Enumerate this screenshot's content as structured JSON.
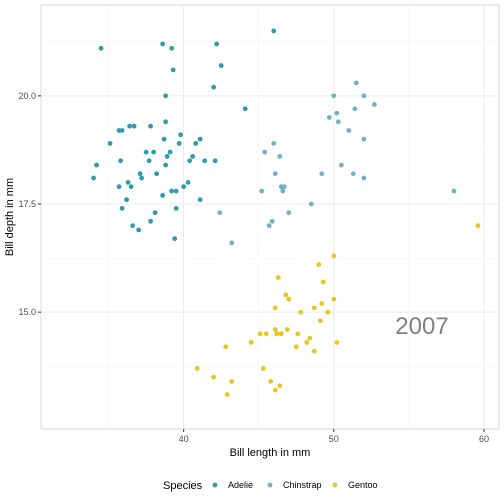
{
  "chart_data": {
    "type": "scatter",
    "title": "",
    "xlabel": "Bill length in mm",
    "ylabel": "Bill depth in mm",
    "xlim": [
      30.5,
      61
    ],
    "ylim": [
      12.3,
      22.1
    ],
    "x_ticks": [
      40,
      50,
      60
    ],
    "y_ticks": [
      15.0,
      17.5,
      20.0
    ],
    "x_tick_labels": [
      "40",
      "50",
      "60"
    ],
    "y_tick_labels": [
      "15.0",
      "17.5",
      "20.0"
    ],
    "grid": true,
    "legend": {
      "title": "Species",
      "placement": "bottom"
    },
    "annotation": "2007",
    "series": [
      {
        "name": "Adelie",
        "color": "#2E9CAE",
        "points": [
          [
            34.0,
            18.1
          ],
          [
            34.2,
            18.4
          ],
          [
            34.5,
            21.1
          ],
          [
            35.1,
            18.9
          ],
          [
            35.7,
            19.2
          ],
          [
            35.7,
            17.9
          ],
          [
            35.8,
            18.5
          ],
          [
            35.9,
            17.4
          ],
          [
            36.2,
            17.6
          ],
          [
            36.3,
            18.0
          ],
          [
            36.4,
            19.3
          ],
          [
            36.5,
            17.9
          ],
          [
            36.6,
            17.0
          ],
          [
            37.0,
            16.9
          ],
          [
            37.1,
            18.2
          ],
          [
            37.5,
            18.7
          ],
          [
            37.7,
            18.5
          ],
          [
            37.8,
            19.3
          ],
          [
            37.8,
            17.1
          ],
          [
            38.0,
            18.7
          ],
          [
            38.1,
            17.3
          ],
          [
            38.2,
            18.2
          ],
          [
            38.6,
            17.7
          ],
          [
            38.6,
            21.2
          ],
          [
            38.7,
            19.0
          ],
          [
            38.8,
            20.0
          ],
          [
            38.8,
            19.4
          ],
          [
            38.9,
            18.6
          ],
          [
            39.1,
            18.7
          ],
          [
            39.2,
            17.8
          ],
          [
            39.2,
            21.1
          ],
          [
            39.3,
            20.6
          ],
          [
            39.4,
            16.7
          ],
          [
            39.5,
            17.4
          ],
          [
            39.5,
            17.8
          ],
          [
            39.7,
            18.9
          ],
          [
            39.8,
            19.1
          ],
          [
            40.0,
            17.9
          ],
          [
            40.3,
            18.0
          ],
          [
            40.4,
            18.5
          ],
          [
            40.6,
            18.6
          ],
          [
            40.8,
            18.9
          ],
          [
            41.1,
            17.6
          ],
          [
            41.1,
            19.0
          ],
          [
            41.4,
            18.5
          ],
          [
            42.0,
            20.2
          ],
          [
            42.1,
            18.5
          ],
          [
            42.2,
            21.2
          ],
          [
            42.5,
            20.7
          ],
          [
            44.1,
            19.7
          ],
          [
            46.0,
            21.5
          ],
          [
            37.2,
            18.1
          ],
          [
            36.7,
            19.3
          ],
          [
            35.9,
            19.2
          ],
          [
            38.8,
            18.4
          ]
        ]
      },
      {
        "name": "Chinstrap",
        "color": "#6DB3C5",
        "points": [
          [
            42.4,
            17.3
          ],
          [
            43.2,
            16.6
          ],
          [
            45.2,
            17.8
          ],
          [
            45.4,
            18.7
          ],
          [
            45.7,
            17.0
          ],
          [
            45.9,
            17.1
          ],
          [
            46.0,
            18.9
          ],
          [
            46.1,
            18.2
          ],
          [
            46.4,
            18.6
          ],
          [
            46.5,
            17.9
          ],
          [
            46.6,
            17.8
          ],
          [
            46.7,
            17.9
          ],
          [
            47.0,
            17.3
          ],
          [
            48.5,
            17.5
          ],
          [
            49.2,
            18.2
          ],
          [
            49.7,
            19.5
          ],
          [
            50.0,
            20.0
          ],
          [
            50.2,
            19.6
          ],
          [
            50.3,
            19.4
          ],
          [
            50.5,
            18.4
          ],
          [
            51.0,
            19.2
          ],
          [
            51.3,
            18.2
          ],
          [
            51.4,
            19.7
          ],
          [
            51.5,
            20.3
          ],
          [
            52.0,
            18.1
          ],
          [
            52.0,
            20.0
          ],
          [
            52.0,
            19.0
          ],
          [
            52.7,
            19.8
          ],
          [
            58.0,
            17.8
          ]
        ]
      },
      {
        "name": "Gentoo",
        "color": "#E8C61E",
        "points": [
          [
            40.9,
            13.7
          ],
          [
            42.0,
            13.5
          ],
          [
            42.8,
            14.2
          ],
          [
            42.9,
            13.1
          ],
          [
            43.2,
            13.4
          ],
          [
            44.5,
            14.3
          ],
          [
            45.1,
            14.5
          ],
          [
            45.3,
            13.7
          ],
          [
            45.5,
            14.5
          ],
          [
            45.8,
            13.4
          ],
          [
            46.1,
            14.6
          ],
          [
            46.1,
            15.1
          ],
          [
            46.1,
            13.2
          ],
          [
            46.2,
            14.5
          ],
          [
            46.3,
            15.8
          ],
          [
            46.4,
            13.3
          ],
          [
            46.5,
            14.5
          ],
          [
            46.8,
            15.4
          ],
          [
            46.9,
            14.6
          ],
          [
            47.0,
            15.3
          ],
          [
            47.5,
            14.2
          ],
          [
            47.6,
            14.5
          ],
          [
            47.8,
            15.0
          ],
          [
            48.2,
            14.3
          ],
          [
            48.4,
            14.4
          ],
          [
            48.7,
            14.1
          ],
          [
            48.7,
            15.1
          ],
          [
            49.0,
            16.1
          ],
          [
            49.1,
            14.8
          ],
          [
            49.2,
            15.2
          ],
          [
            49.3,
            15.7
          ],
          [
            49.6,
            15.0
          ],
          [
            50.0,
            15.3
          ],
          [
            50.0,
            16.3
          ],
          [
            50.2,
            14.3
          ],
          [
            59.6,
            17.0
          ]
        ]
      }
    ]
  }
}
